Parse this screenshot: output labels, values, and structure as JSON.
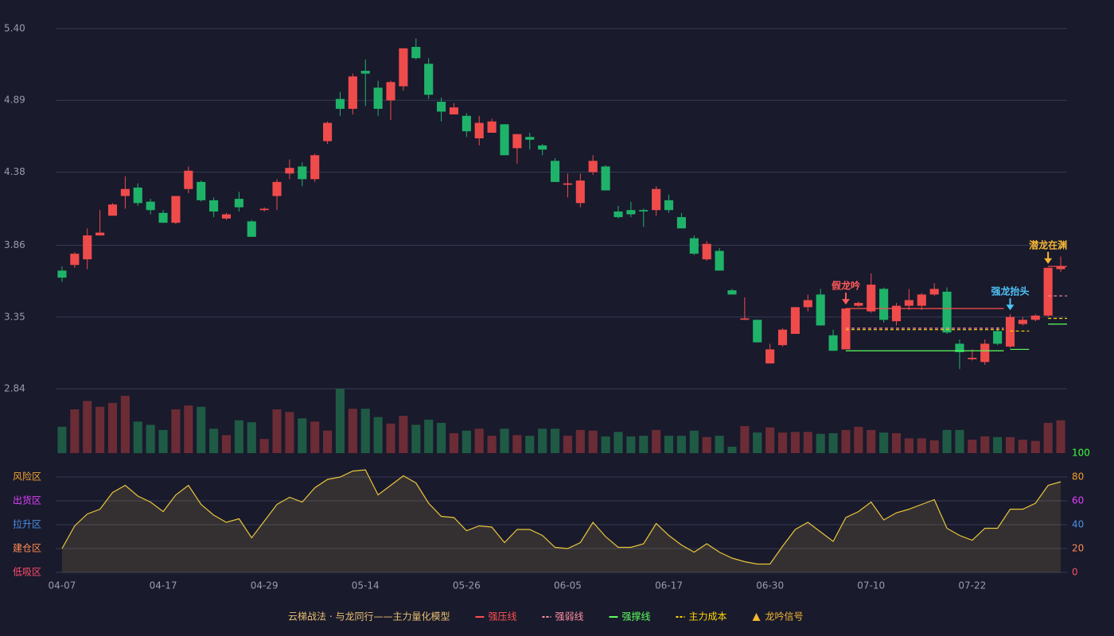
{
  "chart_data": [
    {
      "type": "candlestick",
      "categories": [
        "04-07",
        null,
        null,
        null,
        null,
        null,
        null,
        null,
        "04-17",
        null,
        null,
        null,
        null,
        null,
        null,
        null,
        "04-29",
        null,
        null,
        null,
        null,
        null,
        null,
        null,
        "05-14",
        null,
        null,
        null,
        null,
        null,
        null,
        null,
        "05-26",
        null,
        null,
        null,
        null,
        null,
        null,
        null,
        "06-05",
        null,
        null,
        null,
        null,
        null,
        null,
        null,
        "06-17",
        null,
        null,
        null,
        null,
        null,
        null,
        null,
        "06-30",
        null,
        null,
        null,
        null,
        null,
        null,
        null,
        "07-10",
        null,
        null,
        null,
        null,
        null,
        null,
        null,
        "07-22",
        null,
        null,
        null,
        null,
        null,
        null,
        null
      ],
      "open": [
        3.68,
        3.72,
        3.76,
        3.93,
        4.07,
        4.21,
        4.27,
        4.17,
        4.09,
        4.02,
        4.26,
        4.31,
        4.18,
        4.05,
        4.19,
        4.03,
        4.11,
        4.21,
        4.37,
        4.42,
        4.33,
        4.6,
        4.9,
        4.83,
        5.1,
        4.98,
        4.89,
        4.99,
        5.27,
        5.15,
        4.88,
        4.79,
        4.78,
        4.62,
        4.66,
        4.72,
        4.55,
        4.63,
        4.57,
        4.46,
        4.29,
        4.16,
        4.38,
        4.42,
        4.1,
        4.11,
        4.11,
        4.11,
        4.18,
        4.06,
        3.91,
        3.76,
        3.82,
        3.54,
        3.33,
        3.33,
        3.02,
        3.15,
        3.23,
        3.42,
        3.51,
        3.22,
        3.12,
        3.43,
        3.39,
        3.55,
        3.32,
        3.43,
        3.43,
        3.51,
        3.53,
        3.16,
        3.05,
        3.03,
        3.25,
        3.14,
        3.3,
        3.33,
        3.36,
        3.69
      ],
      "high": [
        3.71,
        3.81,
        3.98,
        4.11,
        4.16,
        4.35,
        4.3,
        4.19,
        4.11,
        4.21,
        4.42,
        4.32,
        4.2,
        4.09,
        4.24,
        4.04,
        4.13,
        4.33,
        4.47,
        4.45,
        4.51,
        4.74,
        4.95,
        5.08,
        5.18,
        5.03,
        5.03,
        5.26,
        5.33,
        5.19,
        4.91,
        4.87,
        4.8,
        4.78,
        4.76,
        4.72,
        4.65,
        4.66,
        4.58,
        4.48,
        4.37,
        4.37,
        4.5,
        4.43,
        4.14,
        4.17,
        4.12,
        4.28,
        4.22,
        4.09,
        3.93,
        3.89,
        3.84,
        3.55,
        3.49,
        3.33,
        3.16,
        3.27,
        3.42,
        3.51,
        3.55,
        3.26,
        3.41,
        3.46,
        3.66,
        3.56,
        3.45,
        3.55,
        3.52,
        3.59,
        3.56,
        3.19,
        3.12,
        3.19,
        3.28,
        3.37,
        3.35,
        3.37,
        3.7,
        3.78
      ],
      "low": [
        3.6,
        3.7,
        3.69,
        3.93,
        4.07,
        4.12,
        4.14,
        4.08,
        4.02,
        4.01,
        4.23,
        4.17,
        4.06,
        4.04,
        4.1,
        3.92,
        4.1,
        4.11,
        4.33,
        4.28,
        4.31,
        4.58,
        4.78,
        4.79,
        4.85,
        4.78,
        4.75,
        4.96,
        5.18,
        4.9,
        4.74,
        4.79,
        4.63,
        4.57,
        4.66,
        4.5,
        4.44,
        4.54,
        4.5,
        4.31,
        4.2,
        4.13,
        4.36,
        4.25,
        4.05,
        4.06,
        3.99,
        4.07,
        4.09,
        3.98,
        3.79,
        3.75,
        3.68,
        3.51,
        3.33,
        3.17,
        3.02,
        3.14,
        3.23,
        3.39,
        3.29,
        3.11,
        3.12,
        3.42,
        3.38,
        3.31,
        3.29,
        3.4,
        3.4,
        3.5,
        3.23,
        2.98,
        3.04,
        3.01,
        3.15,
        3.13,
        3.29,
        3.32,
        3.35,
        3.67
      ],
      "close": [
        3.63,
        3.8,
        3.93,
        3.95,
        4.15,
        4.26,
        4.16,
        4.11,
        4.02,
        4.21,
        4.39,
        4.18,
        4.1,
        4.08,
        4.13,
        3.92,
        4.12,
        4.31,
        4.41,
        4.33,
        4.5,
        4.73,
        4.83,
        5.06,
        5.08,
        4.83,
        5.02,
        5.26,
        5.19,
        4.93,
        4.81,
        4.84,
        4.67,
        4.73,
        4.74,
        4.5,
        4.65,
        4.61,
        4.54,
        4.31,
        4.3,
        4.32,
        4.46,
        4.25,
        4.06,
        4.08,
        4.1,
        4.26,
        4.11,
        3.98,
        3.8,
        3.87,
        3.68,
        3.51,
        3.34,
        3.17,
        3.12,
        3.26,
        3.42,
        3.47,
        3.29,
        3.11,
        3.41,
        3.45,
        3.58,
        3.33,
        3.43,
        3.47,
        3.51,
        3.55,
        3.24,
        3.1,
        3.06,
        3.16,
        3.16,
        3.35,
        3.33,
        3.36,
        3.7,
        3.71
      ],
      "up_color": "#ef4b4b",
      "down_color": "#1fb36a",
      "ylim": [
        2.84,
        5.4
      ],
      "yticks": [
        {
          "value": 5.4,
          "label": "5.40"
        },
        4.89,
        4.38,
        3.86,
        3.35,
        2.84
      ],
      "grid": true,
      "title": "云梯战法 · 与龙同行——主力量化模型",
      "overlays": [
        {
          "name": "强压线",
          "color": "#ff4d4d",
          "dashed": false,
          "segments": [
            {
              "start": 62,
              "end": 74,
              "value": 3.41
            },
            {
              "start": 78,
              "end": 79,
              "value": 3.71
            }
          ]
        },
        {
          "name": "强弱线",
          "color": "#ff8fa3",
          "dashed": true,
          "segments": [
            {
              "start": 62,
              "end": 74,
              "value": 3.27
            },
            {
              "start": 78,
              "end": 79,
              "value": 3.5
            }
          ]
        },
        {
          "name": "强撑线",
          "color": "#5cff5c",
          "dashed": false,
          "segments": [
            {
              "start": 62,
              "end": 74,
              "value": 3.11
            },
            {
              "start": 75,
              "end": 76,
              "value": 3.12
            },
            {
              "start": 78,
              "end": 79,
              "value": 3.3
            }
          ]
        },
        {
          "name": "主力成本",
          "color": "#ffd700",
          "dashed": true,
          "segments": [
            {
              "start": 62,
              "end": 74,
              "value": 3.26
            },
            {
              "start": 75,
              "end": 76,
              "value": 3.25
            },
            {
              "start": 78,
              "end": 79,
              "value": 3.34
            }
          ]
        }
      ],
      "signals": {
        "name": "龙吟信号",
        "color": "#f5b731",
        "items": [
          {
            "text": "假龙吟",
            "index": 62,
            "color": "#ff5a5a"
          },
          {
            "text": "强龙抬头",
            "index": 75,
            "color": "#4fc3f7"
          },
          {
            "text": "潜龙在渊",
            "index": 78,
            "color": "#f5b731"
          }
        ]
      }
    },
    {
      "type": "bar",
      "values": [
        41,
        68,
        81,
        72,
        78,
        89,
        49,
        44,
        36,
        68,
        74,
        72,
        38,
        28,
        51,
        48,
        22,
        68,
        64,
        54,
        49,
        35,
        100,
        69,
        69,
        56,
        46,
        58,
        44,
        52,
        47,
        31,
        35,
        38,
        27,
        38,
        28,
        27,
        38,
        38,
        27,
        36,
        35,
        26,
        33,
        26,
        27,
        36,
        27,
        27,
        35,
        25,
        27,
        10,
        42,
        32,
        40,
        32,
        33,
        33,
        30,
        31,
        36,
        41,
        36,
        32,
        31,
        23,
        23,
        20,
        36,
        36,
        21,
        26,
        25,
        25,
        21,
        19,
        47,
        51
      ],
      "up_color": "#6b2c35",
      "down_color": "#1f5a45",
      "ylim": [
        0,
        100
      ]
    },
    {
      "type": "area",
      "values": [
        20,
        39,
        49,
        53,
        67,
        73,
        64,
        59,
        51,
        65,
        73,
        57,
        48,
        42,
        45,
        29,
        43,
        57,
        63,
        59,
        71,
        78,
        80,
        85,
        86,
        65,
        73,
        81,
        75,
        58,
        47,
        46,
        35,
        39,
        38,
        25,
        36,
        36,
        31,
        21,
        20,
        25,
        42,
        30,
        21,
        21,
        24,
        41,
        31,
        23,
        17,
        24,
        17,
        12,
        9,
        7,
        7,
        22,
        36,
        42,
        34,
        26,
        46,
        51,
        59,
        44,
        50,
        53,
        57,
        61,
        37,
        31,
        27,
        37,
        37,
        53,
        53,
        58,
        73,
        76
      ],
      "color": "#e8c53a",
      "ylim": [
        0,
        100
      ],
      "yticks": [
        0,
        20,
        40,
        60,
        80,
        100
      ],
      "ytick_colors": [
        "#ff4d6d",
        "#ff8a50",
        "#4a90e2",
        "#e040fb",
        "#f0a030",
        "#3cff3c"
      ],
      "zones": [
        {
          "label": "风险区",
          "value": 80,
          "color": "#f0a030"
        },
        {
          "label": "出货区",
          "value": 60,
          "color": "#e040fb"
        },
        {
          "label": "拉升区",
          "value": 40,
          "color": "#4a90e2"
        },
        {
          "label": "建仓区",
          "value": 20,
          "color": "#ff8a50"
        },
        {
          "label": "低吸区",
          "value": 0,
          "color": "#ff4d6d"
        }
      ]
    }
  ]
}
